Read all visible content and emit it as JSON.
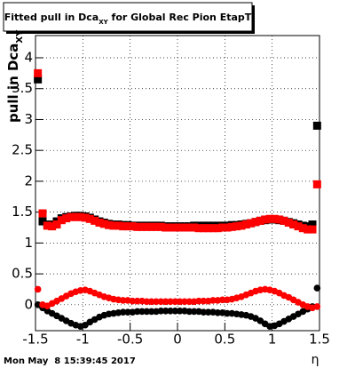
{
  "chart_data": {
    "type": "scatter",
    "title": [
      "Fitted pull in Dca",
      "XY",
      " for Global Rec Pion EtapT"
    ],
    "y_label": [
      "pull in Dca",
      "XY"
    ],
    "x_label": "η",
    "footer": "Mon May  8 15:39:45 2017",
    "xlim": [
      -1.5,
      1.5
    ],
    "ylim": [
      -0.42,
      4.36
    ],
    "xticks": [
      -1.5,
      -1,
      -0.5,
      0,
      0.5,
      1,
      1.5
    ],
    "yticks": [
      0,
      0.5,
      1,
      1.5,
      2,
      2.5,
      3,
      3.5,
      4
    ],
    "grid": true,
    "x": [
      -1.475,
      -1.425,
      -1.375,
      -1.325,
      -1.275,
      -1.225,
      -1.175,
      -1.125,
      -1.075,
      -1.025,
      -0.975,
      -0.925,
      -0.875,
      -0.825,
      -0.775,
      -0.725,
      -0.675,
      -0.625,
      -0.575,
      -0.525,
      -0.475,
      -0.425,
      -0.375,
      -0.325,
      -0.275,
      -0.225,
      -0.175,
      -0.125,
      -0.075,
      -0.025,
      0.025,
      0.075,
      0.125,
      0.175,
      0.225,
      0.275,
      0.325,
      0.375,
      0.425,
      0.475,
      0.525,
      0.575,
      0.625,
      0.675,
      0.725,
      0.775,
      0.825,
      0.875,
      0.925,
      0.975,
      1.025,
      1.075,
      1.125,
      1.175,
      1.225,
      1.275,
      1.325,
      1.375,
      1.425,
      1.475
    ],
    "series": [
      {
        "color": "#000000",
        "marker": "square",
        "values": [
          3.65,
          1.35,
          1.3,
          1.3,
          1.35,
          1.4,
          1.42,
          1.43,
          1.44,
          1.44,
          1.43,
          1.41,
          1.38,
          1.35,
          1.33,
          1.31,
          1.3,
          1.3,
          1.29,
          1.29,
          1.28,
          1.28,
          1.28,
          1.28,
          1.28,
          1.28,
          1.28,
          1.27,
          1.27,
          1.27,
          1.27,
          1.27,
          1.27,
          1.28,
          1.28,
          1.28,
          1.28,
          1.28,
          1.28,
          1.28,
          1.28,
          1.29,
          1.29,
          1.3,
          1.31,
          1.32,
          1.34,
          1.36,
          1.37,
          1.38,
          1.38,
          1.37,
          1.36,
          1.34,
          1.32,
          1.3,
          1.28,
          1.27,
          1.3,
          2.9
        ]
      },
      {
        "color": "#ff0000",
        "marker": "square",
        "values": [
          3.75,
          1.48,
          1.28,
          1.27,
          1.3,
          1.37,
          1.4,
          1.42,
          1.42,
          1.42,
          1.41,
          1.39,
          1.36,
          1.33,
          1.31,
          1.29,
          1.28,
          1.28,
          1.27,
          1.27,
          1.27,
          1.26,
          1.26,
          1.26,
          1.26,
          1.26,
          1.26,
          1.25,
          1.25,
          1.25,
          1.25,
          1.25,
          1.25,
          1.25,
          1.24,
          1.24,
          1.24,
          1.24,
          1.24,
          1.25,
          1.25,
          1.26,
          1.27,
          1.28,
          1.3,
          1.32,
          1.34,
          1.36,
          1.38,
          1.39,
          1.39,
          1.38,
          1.36,
          1.33,
          1.3,
          1.27,
          1.24,
          1.22,
          1.22,
          1.95
        ]
      },
      {
        "color": "#000000",
        "marker": "circle",
        "values": [
          0.0,
          -0.05,
          -0.1,
          -0.14,
          -0.18,
          -0.22,
          -0.26,
          -0.3,
          -0.33,
          -0.35,
          -0.33,
          -0.28,
          -0.24,
          -0.2,
          -0.17,
          -0.15,
          -0.14,
          -0.13,
          -0.12,
          -0.12,
          -0.12,
          -0.11,
          -0.11,
          -0.11,
          -0.11,
          -0.11,
          -0.1,
          -0.1,
          -0.1,
          -0.1,
          -0.1,
          -0.1,
          -0.11,
          -0.11,
          -0.11,
          -0.12,
          -0.12,
          -0.12,
          -0.13,
          -0.13,
          -0.14,
          -0.14,
          -0.15,
          -0.16,
          -0.17,
          -0.19,
          -0.22,
          -0.26,
          -0.31,
          -0.35,
          -0.34,
          -0.31,
          -0.27,
          -0.23,
          -0.19,
          -0.15,
          -0.11,
          -0.07,
          -0.03,
          0.27
        ]
      },
      {
        "color": "#ff0000",
        "marker": "circle",
        "values": [
          0.25,
          0.0,
          -0.02,
          0.02,
          0.06,
          0.1,
          0.14,
          0.18,
          0.21,
          0.23,
          0.24,
          0.22,
          0.19,
          0.16,
          0.13,
          0.11,
          0.09,
          0.08,
          0.07,
          0.07,
          0.06,
          0.06,
          0.06,
          0.05,
          0.05,
          0.05,
          0.05,
          0.05,
          0.05,
          0.05,
          0.05,
          0.05,
          0.05,
          0.05,
          0.06,
          0.06,
          0.06,
          0.07,
          0.07,
          0.08,
          0.08,
          0.09,
          0.11,
          0.13,
          0.16,
          0.19,
          0.22,
          0.24,
          0.25,
          0.24,
          0.22,
          0.19,
          0.15,
          0.12,
          0.08,
          0.04,
          0.0,
          -0.03,
          -0.05,
          -0.03
        ]
      }
    ]
  }
}
